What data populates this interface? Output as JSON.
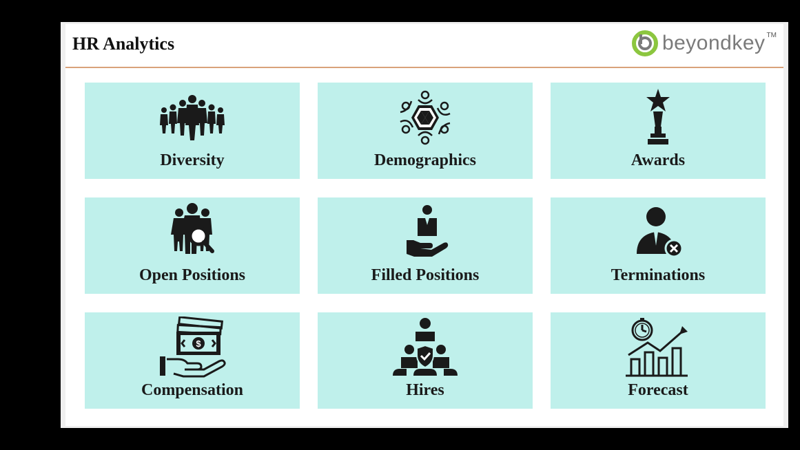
{
  "header": {
    "title": "HR Analytics",
    "logo_text": "beyondkey",
    "logo_tm": "TM"
  },
  "tiles": [
    {
      "label": "Diversity",
      "icon": "people-group-icon"
    },
    {
      "label": "Demographics",
      "icon": "circle-of-people-icon"
    },
    {
      "label": "Awards",
      "icon": "trophy-icon"
    },
    {
      "label": "Open Positions",
      "icon": "people-search-icon"
    },
    {
      "label": "Filled Positions",
      "icon": "hand-holding-person-icon"
    },
    {
      "label": "Terminations",
      "icon": "person-remove-icon"
    },
    {
      "label": "Compensation",
      "icon": "hand-money-icon"
    },
    {
      "label": "Hires",
      "icon": "team-shield-icon"
    },
    {
      "label": "Forecast",
      "icon": "clock-growth-chart-icon"
    }
  ],
  "colors": {
    "tile_bg": "#bff0eb",
    "header_rule": "#d9a27a",
    "logo_green": "#8cc63f",
    "icon": "#1a1a1a"
  }
}
